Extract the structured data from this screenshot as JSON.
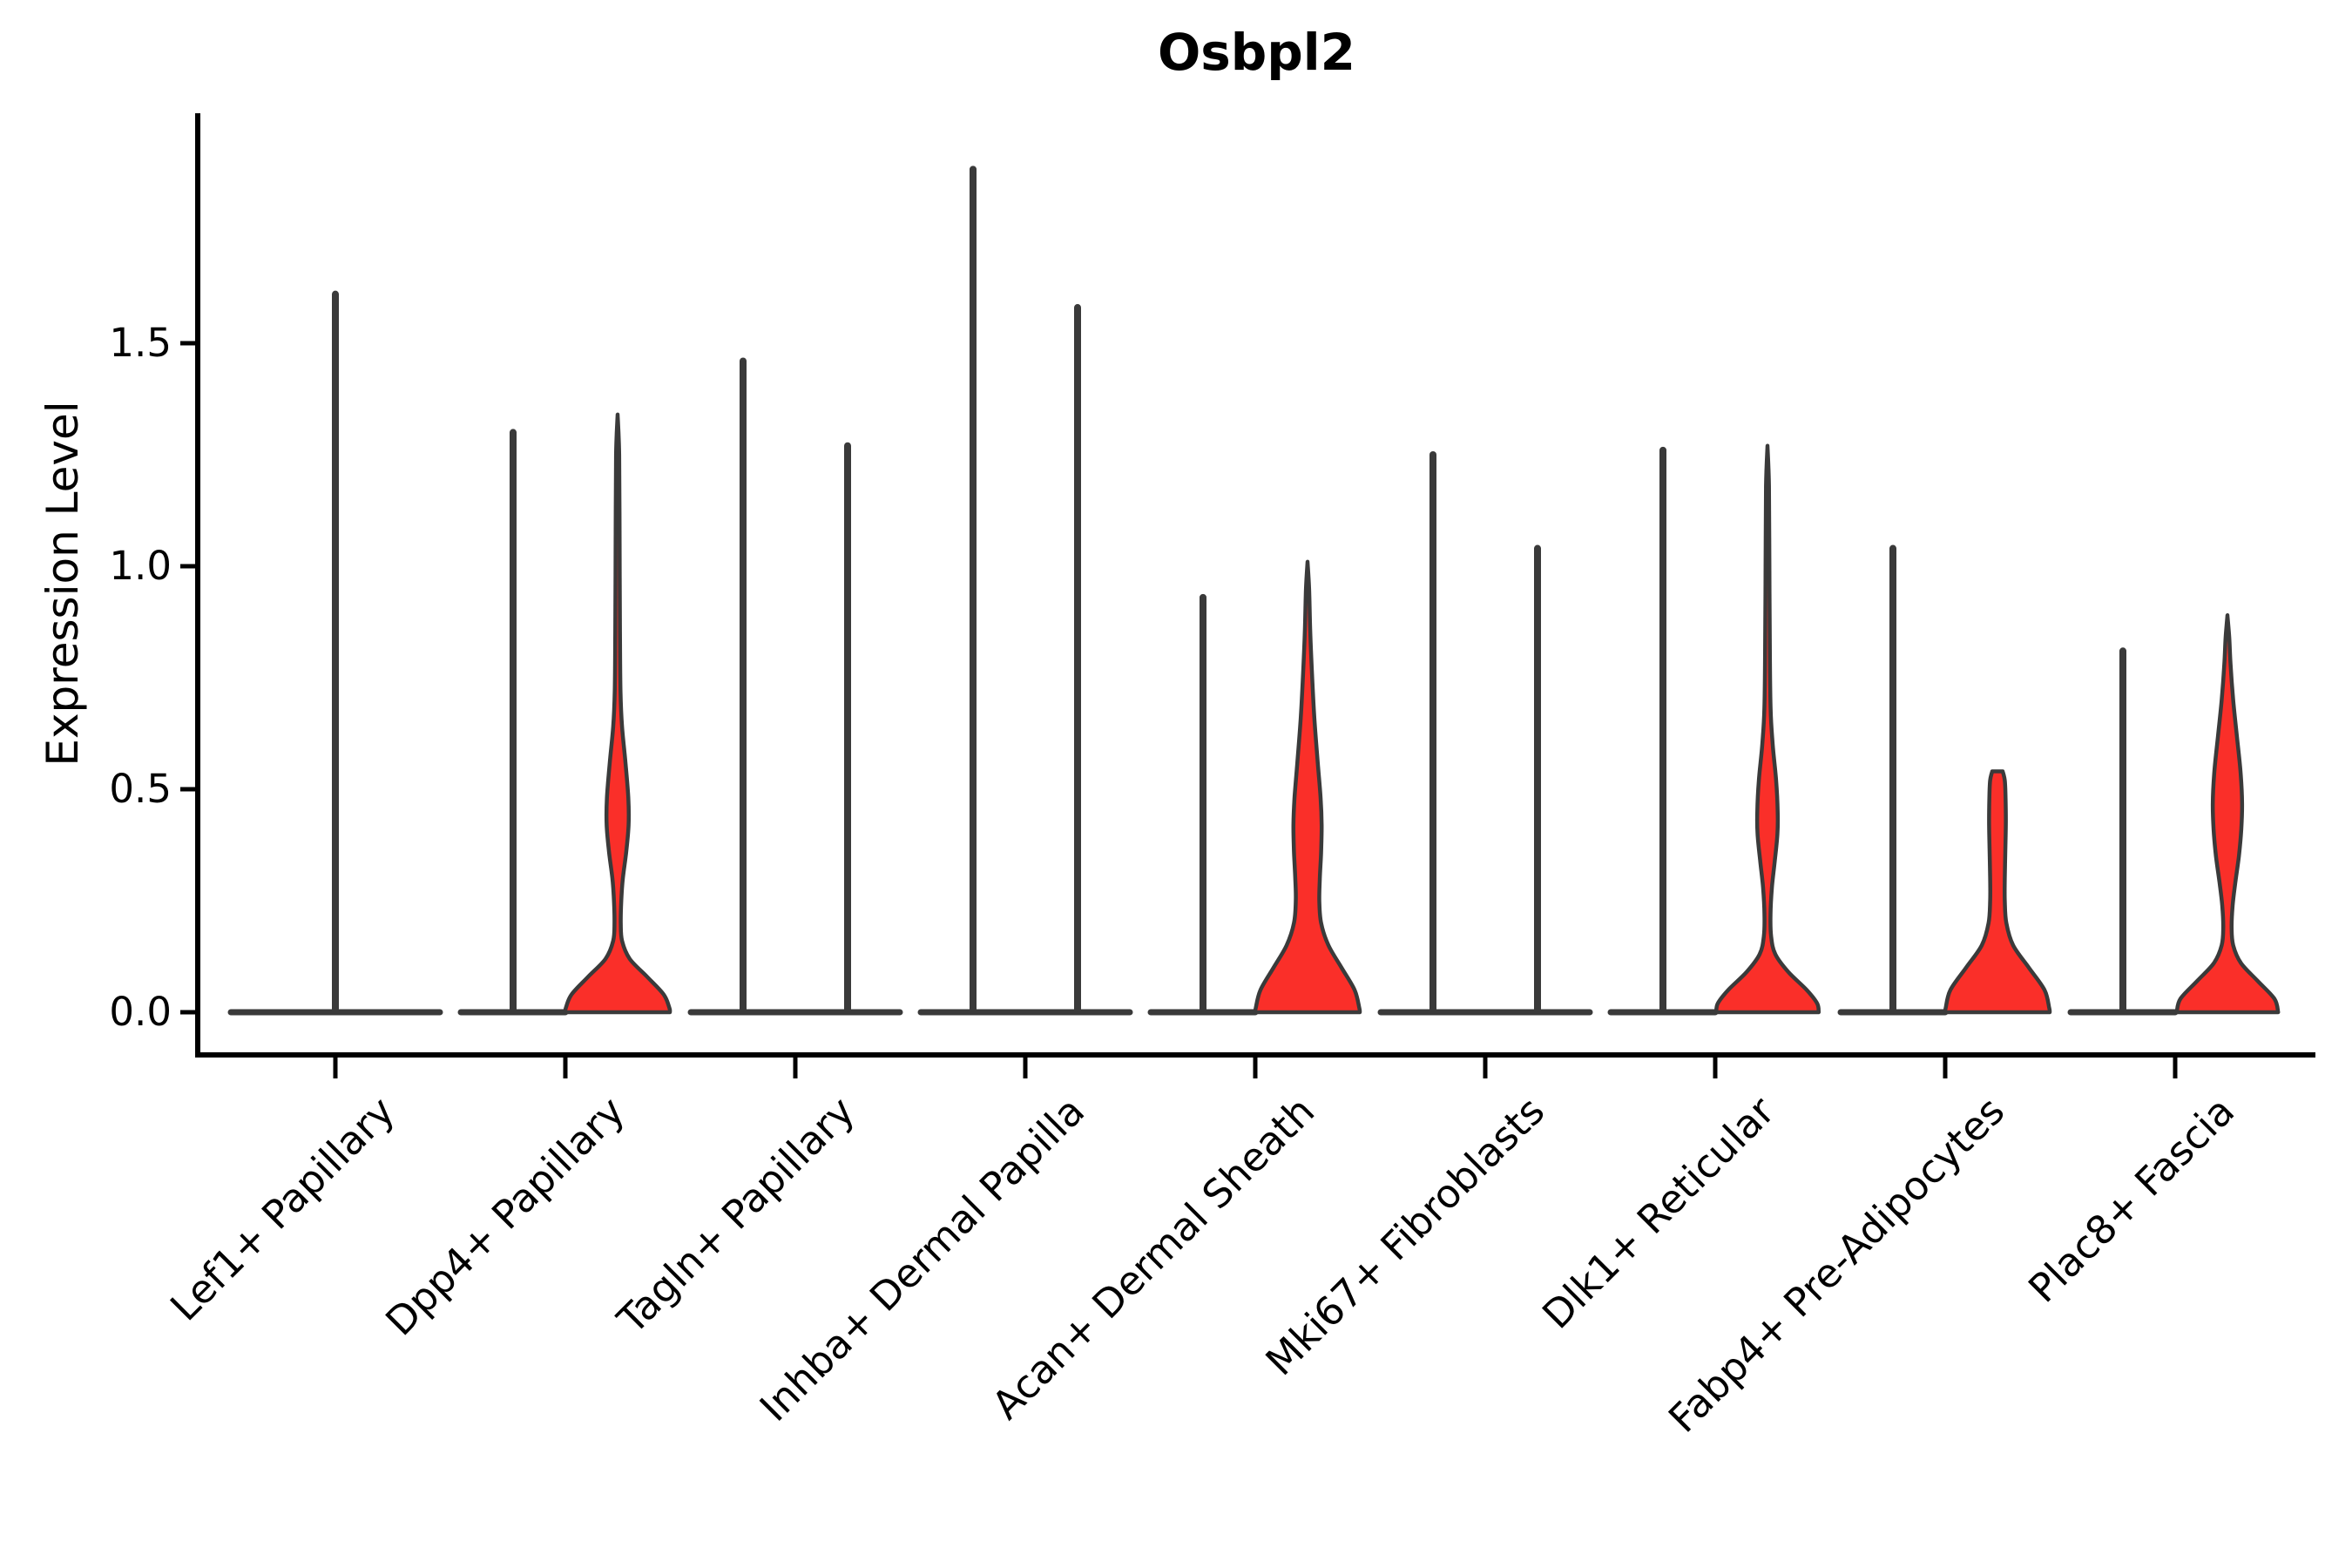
{
  "title": "Osbpl2",
  "colors": {
    "violin_fill_red": "#fa2f29",
    "violin_outline": "#3a3a3a",
    "axis": "#000000",
    "background": "#ffffff",
    "text": "#000000"
  },
  "chart_data": {
    "type": "violin",
    "title": "Osbpl2",
    "xlabel": "",
    "ylabel": "Expression Level",
    "yticks": [
      0.0,
      0.5,
      1.0,
      1.5
    ],
    "ytick_labels": [
      "0.0",
      "0.5",
      "1.0",
      "1.5"
    ],
    "ylim": [
      -0.09,
      2.02
    ],
    "grid": false,
    "legend": null,
    "background": "white",
    "categories": [
      "Lef1+ Papillary",
      "Dpp4+ Papillary",
      "Tagln+ Papillary",
      "Inhba+ Dermal Papilla",
      "Acan+ Dermal Sheath",
      "Mki67+ Fibroblasts",
      "Dlk1+ Reticular",
      "Fabp4+ Pre-Adipocytes",
      "Plac8+ Fascia"
    ],
    "groups_per_category": 2,
    "max_expression_by_category": [
      [
        1.61
      ],
      [
        1.3,
        1.34
      ],
      [
        1.46,
        1.27
      ],
      [
        1.89,
        1.58
      ],
      [
        0.93,
        1.01
      ],
      [
        1.25,
        1.04
      ],
      [
        1.26,
        1.27
      ],
      [
        1.04,
        0.54
      ],
      [
        0.81,
        0.89
      ]
    ],
    "violins": [
      {
        "category": "Lef1+ Papillary",
        "group_violins": [
          {
            "slot": 0,
            "max_expression": 1.61,
            "style": "collapsed-spike",
            "wide": true
          }
        ]
      },
      {
        "category": "Dpp4+ Papillary",
        "group_violins": [
          {
            "slot": -1,
            "max_expression": 1.3,
            "style": "collapsed-spike"
          },
          {
            "slot": 1,
            "max_expression": 1.34,
            "style": "density",
            "fill": "#fa2f29",
            "profile": [
              [
                1.34,
                0
              ],
              [
                1.25,
                0.03
              ],
              [
                1.05,
                0.038
              ],
              [
                0.85,
                0.045
              ],
              [
                0.72,
                0.055
              ],
              [
                0.64,
                0.085
              ],
              [
                0.56,
                0.15
              ],
              [
                0.48,
                0.205
              ],
              [
                0.42,
                0.21
              ],
              [
                0.36,
                0.165
              ],
              [
                0.3,
                0.1
              ],
              [
                0.25,
                0.07
              ],
              [
                0.2,
                0.06
              ],
              [
                0.16,
                0.085
              ],
              [
                0.12,
                0.23
              ],
              [
                0.08,
                0.56
              ],
              [
                0.04,
                0.88
              ],
              [
                0.01,
                0.99
              ],
              [
                0,
                1.0
              ]
            ]
          }
        ]
      },
      {
        "category": "Tagln+ Papillary",
        "group_violins": [
          {
            "slot": -1,
            "max_expression": 1.46,
            "style": "collapsed-spike"
          },
          {
            "slot": 1,
            "max_expression": 1.27,
            "style": "collapsed-spike"
          }
        ]
      },
      {
        "category": "Inhba+ Dermal Papilla",
        "group_violins": [
          {
            "slot": -1,
            "max_expression": 1.89,
            "style": "collapsed-spike"
          },
          {
            "slot": 1,
            "max_expression": 1.58,
            "style": "collapsed-spike"
          }
        ]
      },
      {
        "category": "Acan+ Dermal Sheath",
        "group_violins": [
          {
            "slot": -1,
            "max_expression": 0.93,
            "style": "collapsed-spike"
          },
          {
            "slot": 1,
            "max_expression": 1.01,
            "style": "density",
            "fill": "#fa2f29",
            "profile": [
              [
                1.01,
                0
              ],
              [
                0.95,
                0.03
              ],
              [
                0.86,
                0.05
              ],
              [
                0.76,
                0.085
              ],
              [
                0.66,
                0.13
              ],
              [
                0.56,
                0.195
              ],
              [
                0.48,
                0.25
              ],
              [
                0.42,
                0.27
              ],
              [
                0.36,
                0.26
              ],
              [
                0.3,
                0.235
              ],
              [
                0.25,
                0.225
              ],
              [
                0.2,
                0.26
              ],
              [
                0.15,
                0.4
              ],
              [
                0.1,
                0.65
              ],
              [
                0.05,
                0.9
              ],
              [
                0.01,
                0.99
              ],
              [
                0,
                1.0
              ]
            ]
          }
        ]
      },
      {
        "category": "Mki67+ Fibroblasts",
        "group_violins": [
          {
            "slot": -1,
            "max_expression": 1.25,
            "style": "collapsed-spike"
          },
          {
            "slot": 1,
            "max_expression": 1.04,
            "style": "collapsed-spike"
          }
        ]
      },
      {
        "category": "Dlk1+ Reticular",
        "group_violins": [
          {
            "slot": -1,
            "max_expression": 1.26,
            "style": "collapsed-spike"
          },
          {
            "slot": 1,
            "max_expression": 1.27,
            "style": "density",
            "fill": "#fa2f29",
            "profile": [
              [
                1.27,
                0
              ],
              [
                1.18,
                0.028
              ],
              [
                1.0,
                0.036
              ],
              [
                0.82,
                0.045
              ],
              [
                0.68,
                0.06
              ],
              [
                0.6,
                0.1
              ],
              [
                0.52,
                0.165
              ],
              [
                0.45,
                0.195
              ],
              [
                0.4,
                0.19
              ],
              [
                0.34,
                0.14
              ],
              [
                0.28,
                0.085
              ],
              [
                0.22,
                0.058
              ],
              [
                0.17,
                0.07
              ],
              [
                0.13,
                0.15
              ],
              [
                0.09,
                0.4
              ],
              [
                0.05,
                0.75
              ],
              [
                0.02,
                0.95
              ],
              [
                0,
                0.98
              ]
            ]
          }
        ]
      },
      {
        "category": "Fabp4+ Pre-Adipocytes",
        "group_violins": [
          {
            "slot": -1,
            "max_expression": 1.04,
            "style": "collapsed-spike"
          },
          {
            "slot": 1,
            "max_expression": 0.54,
            "style": "density",
            "fill": "#fa2f29",
            "flat_top": true,
            "profile": [
              [
                0.54,
                0.1
              ],
              [
                0.52,
                0.14
              ],
              [
                0.48,
                0.155
              ],
              [
                0.42,
                0.16
              ],
              [
                0.36,
                0.15
              ],
              [
                0.3,
                0.14
              ],
              [
                0.25,
                0.14
              ],
              [
                0.2,
                0.17
              ],
              [
                0.15,
                0.3
              ],
              [
                0.1,
                0.6
              ],
              [
                0.05,
                0.9
              ],
              [
                0.01,
                0.99
              ],
              [
                0,
                1.0
              ]
            ]
          }
        ]
      },
      {
        "category": "Plac8+ Fascia",
        "group_violins": [
          {
            "slot": -1,
            "max_expression": 0.81,
            "style": "collapsed-spike"
          },
          {
            "slot": 1,
            "max_expression": 0.89,
            "style": "density",
            "fill": "#fa2f29",
            "profile": [
              [
                0.89,
                0
              ],
              [
                0.84,
                0.035
              ],
              [
                0.78,
                0.06
              ],
              [
                0.7,
                0.11
              ],
              [
                0.62,
                0.18
              ],
              [
                0.54,
                0.25
              ],
              [
                0.47,
                0.28
              ],
              [
                0.41,
                0.265
              ],
              [
                0.35,
                0.22
              ],
              [
                0.29,
                0.15
              ],
              [
                0.24,
                0.1
              ],
              [
                0.19,
                0.08
              ],
              [
                0.15,
                0.11
              ],
              [
                0.11,
                0.26
              ],
              [
                0.07,
                0.58
              ],
              [
                0.03,
                0.9
              ],
              [
                0,
                0.97
              ]
            ]
          }
        ]
      }
    ]
  }
}
